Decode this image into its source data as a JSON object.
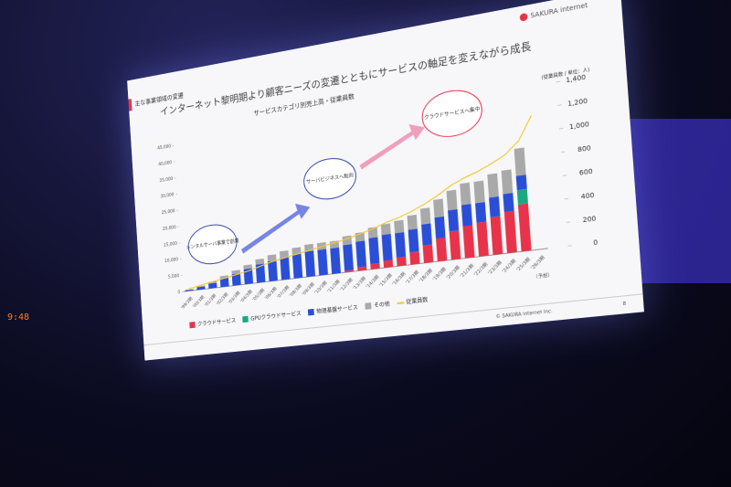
{
  "chart_data": {
    "type": "bar",
    "tag": "主な事業領域の変遷",
    "title": "インターネット黎明期より顧客ニーズの変遷とともにサービスの軸足を変えながら成長",
    "subtitle": "サービスカテゴリ別売上高・従業員数",
    "logo": "SAKURA internet",
    "y2_label": "(従業員数 / 単位：人)",
    "forecast_label": "（予想）",
    "annotations": [
      "レンタルサーバ事業で創業",
      "サーバビジネスへ転向",
      "クラウドサービスへ集中"
    ],
    "footer": "© SAKURA internet Inc.",
    "page": "8",
    "categories": [
      "'99/3期",
      "'00/3期",
      "'01/3期",
      "'02/3期",
      "'03/3期",
      "'04/3期",
      "'05/3期",
      "'06/3期",
      "'07/3期",
      "'08/3期",
      "'09/3期",
      "'10/3期",
      "'11/3期",
      "'12/3期",
      "'13/3期",
      "'14/3期",
      "'15/3期",
      "'16/3期",
      "'17/3期",
      "'18/3期",
      "'19/3期",
      "'20/3期",
      "'21/3期",
      "'22/3期",
      "'23/3期",
      "'24/3期",
      "'25/3期",
      "'26/3期"
    ],
    "series": [
      {
        "name": "クラウドサービス",
        "color": "#e8334a",
        "values": [
          0,
          0,
          0,
          0,
          0,
          0,
          0,
          0,
          0,
          0,
          0,
          0,
          0,
          500,
          1000,
          1500,
          2000,
          2500,
          3500,
          5000,
          6500,
          8000,
          9000,
          9500,
          10500,
          11500,
          13000,
          null
        ]
      },
      {
        "name": "GPUクラウドサービス",
        "color": "#1aa882",
        "values": [
          0,
          0,
          0,
          0,
          0,
          0,
          0,
          0,
          0,
          0,
          0,
          0,
          0,
          0,
          0,
          0,
          0,
          0,
          0,
          0,
          0,
          0,
          0,
          0,
          0,
          0,
          4000,
          null
        ]
      },
      {
        "name": "物理基盤サービス",
        "color": "#2a4fd6",
        "values": [
          300,
          800,
          1500,
          2500,
          3500,
          4500,
          5500,
          6000,
          6500,
          7000,
          7500,
          7500,
          7500,
          7500,
          7500,
          7500,
          7500,
          7000,
          6500,
          6000,
          6000,
          6000,
          6000,
          5500,
          5500,
          5000,
          4000,
          null
        ]
      },
      {
        "name": "その他",
        "color": "#a9a9a9",
        "values": [
          200,
          300,
          500,
          800,
          1000,
          1200,
          1500,
          1800,
          2000,
          2000,
          2000,
          2000,
          2000,
          2500,
          2500,
          3000,
          3000,
          3500,
          4000,
          4500,
          5000,
          5500,
          6000,
          6000,
          6500,
          6500,
          7500,
          null
        ]
      },
      {
        "name": "従業員数",
        "color": "#f3c93b",
        "axis": "y2",
        "values": [
          20,
          40,
          60,
          80,
          100,
          120,
          150,
          180,
          200,
          220,
          240,
          260,
          280,
          300,
          330,
          360,
          400,
          430,
          470,
          520,
          580,
          650,
          700,
          740,
          790,
          850,
          950,
          1150
        ]
      }
    ],
    "ylim": [
      0,
      45000
    ],
    "yticks": [
      0,
      {
        "value": 5000,
        "label": "5,000"
      },
      {
        "value": 10000,
        "label": "10,000"
      },
      {
        "value": 15000,
        "label": "15,000"
      },
      {
        "value": 20000,
        "label": "20,000"
      },
      {
        "value": 25000,
        "label": "25,000"
      },
      {
        "value": 30000,
        "label": "30,000"
      },
      {
        "value": 35000,
        "label": "35,000"
      },
      {
        "value": 40000,
        "label": "40,000"
      },
      {
        "value": 45000,
        "label": "45,000"
      }
    ],
    "y2lim": [
      0,
      1400
    ],
    "y2ticks": [
      0,
      200,
      400,
      600,
      800,
      {
        "value": 1000,
        "label": "1,000"
      },
      {
        "value": 1200,
        "label": "1,200"
      },
      {
        "value": 1400,
        "label": "1,400"
      }
    ]
  }
}
